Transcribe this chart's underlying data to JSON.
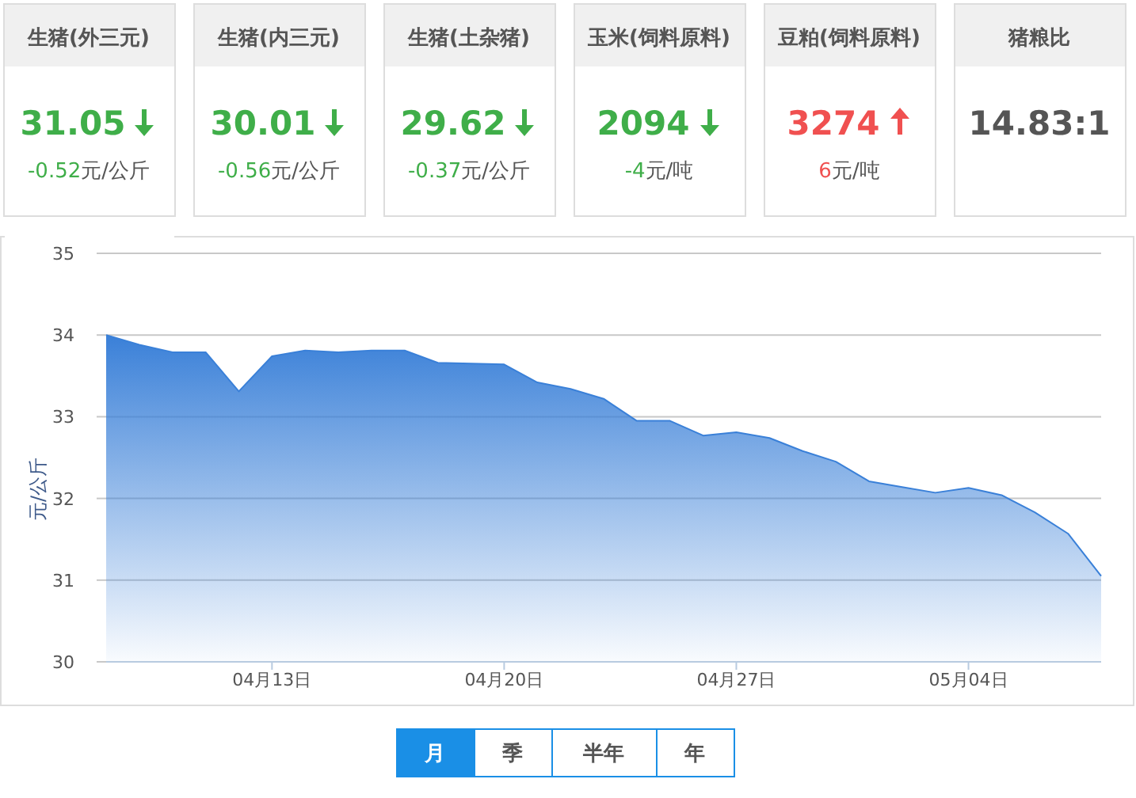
{
  "chart_data": [
    {
      "type": "other",
      "categories": [
        "生猪(外三元)",
        "生猪(内三元)",
        "生猪(土杂猪)",
        "玉米(饲料原料)",
        "豆粕(饲料原料)",
        "猪粮比"
      ],
      "value_labels": [
        "31.05",
        "30.01",
        "29.62",
        "2094",
        "3274",
        "14.83:1"
      ],
      "annotations": [
        "-0.52元/公斤",
        "-0.56元/公斤",
        "-0.37元/公斤",
        "-4元/吨",
        "6元/吨",
        null
      ]
    },
    {
      "type": "area",
      "ylabel": "元/公斤",
      "ylim": [
        30,
        35
      ],
      "yticks": [
        30,
        31,
        32,
        33,
        34,
        35
      ],
      "grid": "y",
      "xlim": [
        "--04-08",
        "--05-08"
      ],
      "xticks": [
        {
          "value": "--04-13",
          "label": "04月13日"
        },
        {
          "value": "--04-20",
          "label": "04月20日"
        },
        {
          "value": "--04-27",
          "label": "04月27日"
        },
        {
          "value": "--05-04",
          "label": "05月04日"
        }
      ],
      "x": [
        "--04-08",
        "--04-09",
        "--04-10",
        "--04-11",
        "--04-12",
        "--04-13",
        "--04-14",
        "--04-15",
        "--04-16",
        "--04-17",
        "--04-18",
        "--04-19",
        "--04-20",
        "--04-21",
        "--04-22",
        "--04-23",
        "--04-24",
        "--04-25",
        "--04-26",
        "--04-27",
        "--04-28",
        "--04-29",
        "--04-30",
        "--05-01",
        "--05-02",
        "--05-03",
        "--05-04",
        "--05-05",
        "--05-06",
        "--05-07",
        "--05-08"
      ],
      "series": [
        {
          "color": "#3a80d8",
          "values": [
            34.0,
            33.88,
            33.79,
            33.79,
            33.31,
            33.74,
            33.81,
            33.79,
            33.81,
            33.81,
            33.66,
            33.65,
            33.64,
            33.42,
            33.34,
            33.22,
            32.95,
            32.95,
            32.77,
            32.81,
            32.74,
            32.58,
            32.45,
            32.21,
            32.14,
            32.07,
            32.13,
            32.04,
            31.83,
            31.57,
            31.05
          ]
        }
      ],
      "annotations": [
        "月",
        "季",
        "半年",
        "年"
      ]
    }
  ]
}
